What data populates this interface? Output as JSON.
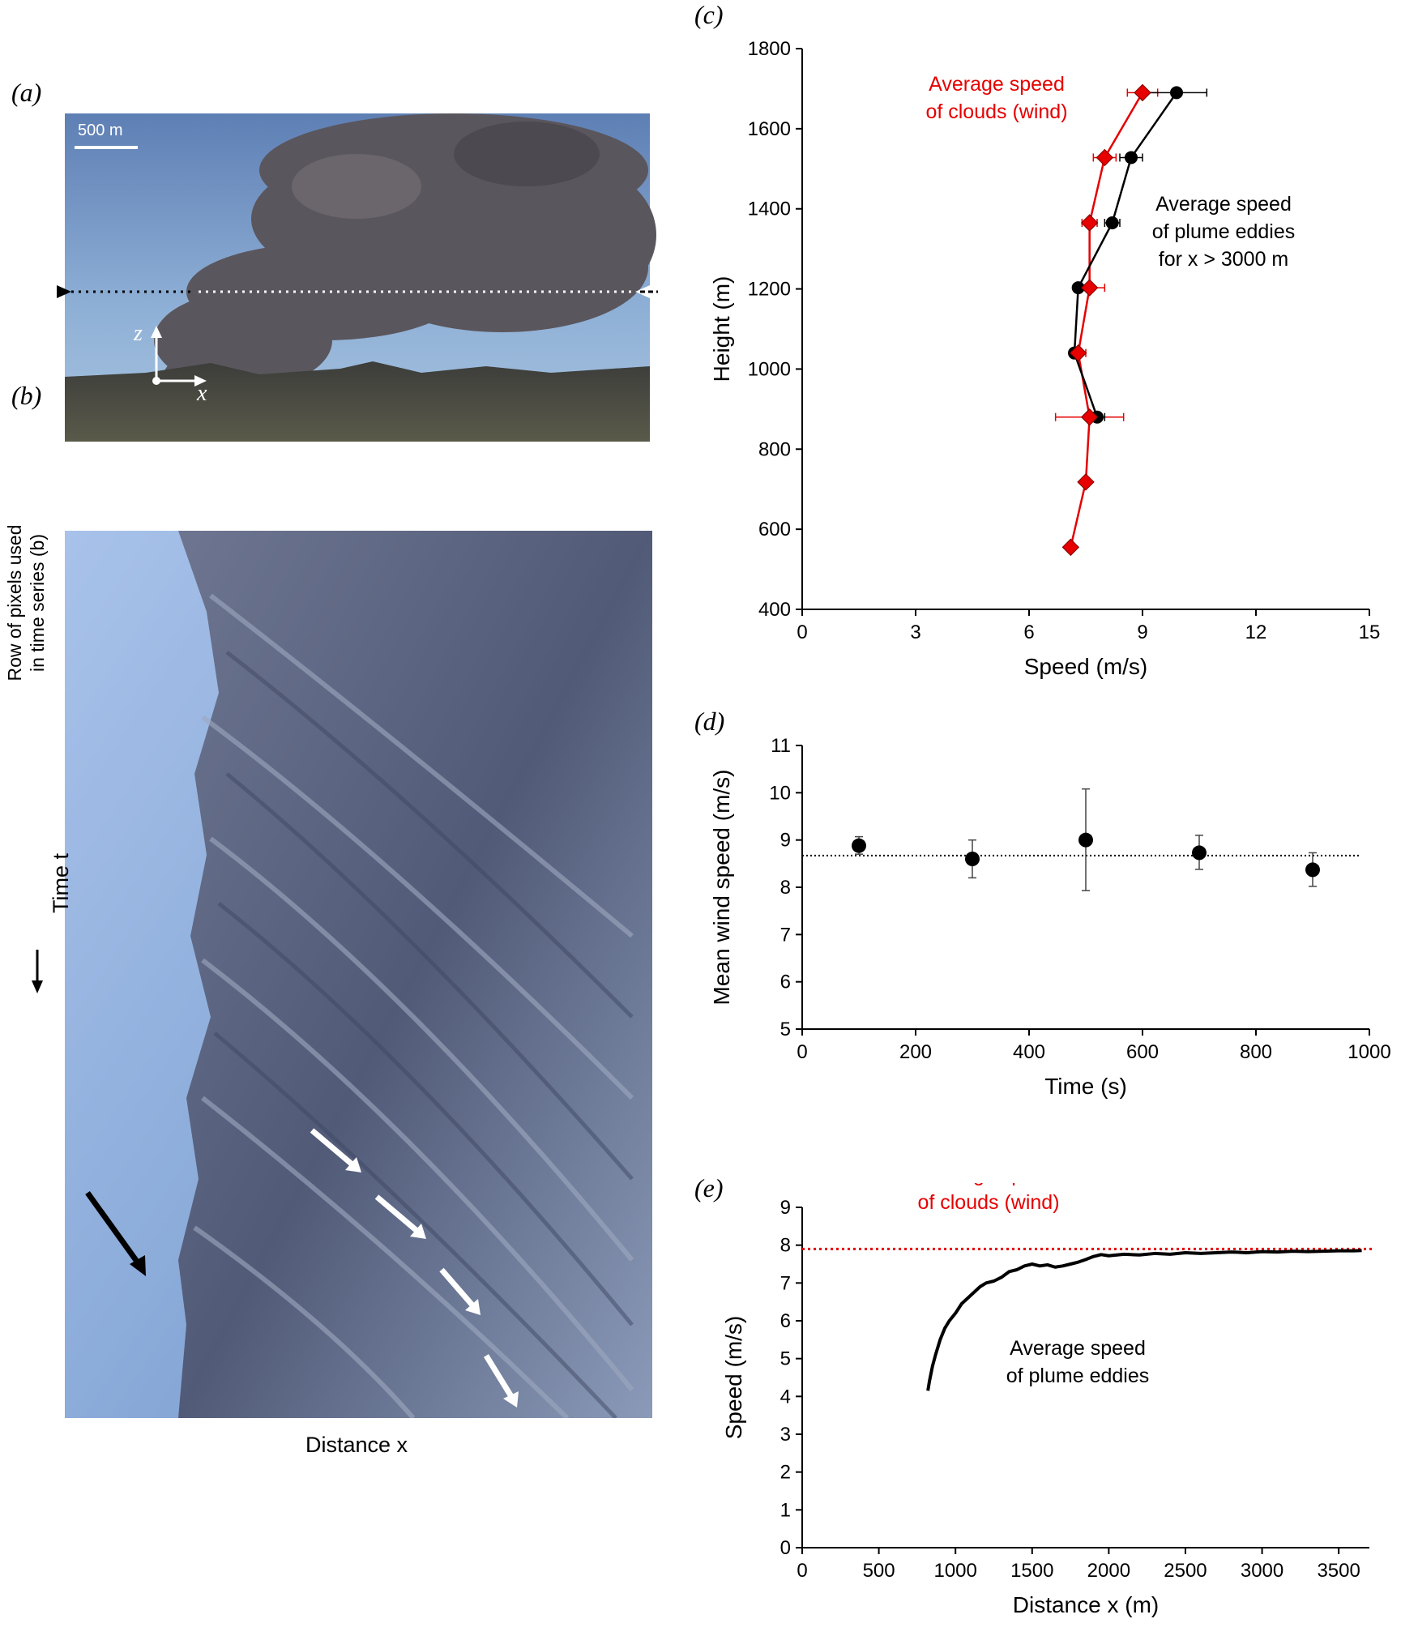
{
  "panel_labels": {
    "a": "(a)",
    "b": "(b)",
    "c": "(c)",
    "d": "(d)",
    "e": "(e)"
  },
  "panel_a": {
    "scale_bar": "500 m",
    "side_label_line1": "Row of pixels used",
    "side_label_line2": "in time series (b)",
    "z_label": "z",
    "x_label": "x",
    "colors": {
      "sky": "#6f93c4",
      "plume": "#5d5a62",
      "ground": "#4a4a40",
      "dotted_black": "#000000",
      "dotted_white": "#ffffff"
    }
  },
  "panel_b": {
    "time_label": "Time t",
    "distance_label": "Distance x",
    "colors": {
      "sky": "#8fb0df",
      "plume_dark": "#55607e",
      "plume_light": "#9aa3b8"
    }
  },
  "chart_data": [
    {
      "id": "c",
      "type": "line",
      "xlabel": "Speed (m/s)",
      "ylabel": "Height (m)",
      "xlim": [
        0,
        15
      ],
      "ylim": [
        400,
        1800
      ],
      "xticks": [
        0,
        3,
        6,
        9,
        12,
        15
      ],
      "yticks": [
        400,
        600,
        800,
        1000,
        1200,
        1400,
        1600,
        1800
      ],
      "grid": false,
      "series": [
        {
          "color": "#e60000",
          "marker": "diamond",
          "x": [
            7.1,
            7.5,
            7.6,
            7.3,
            7.6,
            7.6,
            8.0,
            9.0
          ],
          "y": [
            555,
            718,
            880,
            1040,
            1203,
            1365,
            1528,
            1690
          ],
          "xerr": [
            0.0,
            0.0,
            0.9,
            0.2,
            0.4,
            0.2,
            0.3,
            0.4
          ]
        },
        {
          "color": "#000000",
          "marker": "circle",
          "x": [
            7.8,
            7.2,
            7.3,
            8.2,
            8.7,
            9.9
          ],
          "y": [
            880,
            1040,
            1203,
            1365,
            1528,
            1690
          ],
          "xerr": [
            0.2,
            0.1,
            0.1,
            0.2,
            0.3,
            0.8
          ]
        }
      ],
      "annotations": [
        {
          "text": "Average speed",
          "color": "#e60000"
        },
        {
          "text": "of clouds (wind)",
          "color": "#e60000"
        },
        {
          "text": "Average speed",
          "color": "#000000"
        },
        {
          "text": "of plume eddies",
          "color": "#000000"
        },
        {
          "text": "for x > 3000 m",
          "color": "#000000"
        }
      ]
    },
    {
      "id": "d",
      "type": "scatter",
      "xlabel": "Time (s)",
      "ylabel": "Mean wind speed (m/s)",
      "xlim": [
        0,
        1000
      ],
      "ylim": [
        5,
        11
      ],
      "xticks": [
        0,
        200,
        400,
        600,
        800,
        1000
      ],
      "yticks": [
        5,
        6,
        7,
        8,
        9,
        10,
        11
      ],
      "grid": false,
      "series": [
        {
          "color": "#000000",
          "marker": "circle",
          "x": [
            100,
            300,
            500,
            700,
            900
          ],
          "y": [
            8.88,
            8.6,
            9.0,
            8.73,
            8.37
          ],
          "yerr_low": [
            8.7,
            8.2,
            7.93,
            8.38,
            8.02
          ],
          "yerr_high": [
            9.07,
            9.0,
            10.08,
            9.1,
            8.73
          ]
        }
      ],
      "reference_line": {
        "y": 8.67,
        "style": "dotted",
        "color": "#000000"
      }
    },
    {
      "id": "e",
      "type": "line",
      "xlabel": "Distance x (m)",
      "ylabel": "Speed (m/s)",
      "xlim": [
        0,
        3700
      ],
      "ylim": [
        0,
        9
      ],
      "xticks": [
        0,
        500,
        1000,
        1500,
        2000,
        2500,
        3000,
        3500
      ],
      "yticks": [
        0,
        1,
        2,
        3,
        4,
        5,
        6,
        7,
        8,
        9
      ],
      "grid": false,
      "series": [
        {
          "color": "#000000",
          "x": [
            820,
            830,
            850,
            870,
            900,
            930,
            960,
            1000,
            1040,
            1080,
            1120,
            1160,
            1200,
            1250,
            1300,
            1350,
            1400,
            1450,
            1500,
            1550,
            1600,
            1650,
            1700,
            1750,
            1800,
            1850,
            1900,
            1950,
            2000,
            2100,
            2200,
            2300,
            2400,
            2500,
            2600,
            2700,
            2800,
            2900,
            3000,
            3100,
            3200,
            3300,
            3400,
            3500,
            3600,
            3650
          ],
          "y": [
            4.15,
            4.4,
            4.8,
            5.1,
            5.5,
            5.8,
            6.0,
            6.2,
            6.45,
            6.6,
            6.75,
            6.9,
            7.0,
            7.05,
            7.15,
            7.3,
            7.35,
            7.45,
            7.5,
            7.45,
            7.48,
            7.42,
            7.45,
            7.5,
            7.55,
            7.62,
            7.7,
            7.75,
            7.72,
            7.76,
            7.74,
            7.78,
            7.76,
            7.8,
            7.78,
            7.8,
            7.82,
            7.8,
            7.83,
            7.82,
            7.84,
            7.83,
            7.84,
            7.85,
            7.85,
            7.86
          ]
        }
      ],
      "reference_line": {
        "y": 7.9,
        "style": "dotted",
        "color": "#e60000"
      },
      "annotations": [
        {
          "text": "Average speed",
          "color": "#e60000"
        },
        {
          "text": "of clouds (wind)",
          "color": "#e60000"
        },
        {
          "text": "Average speed",
          "color": "#000000"
        },
        {
          "text": "of plume eddies",
          "color": "#000000"
        }
      ]
    }
  ]
}
